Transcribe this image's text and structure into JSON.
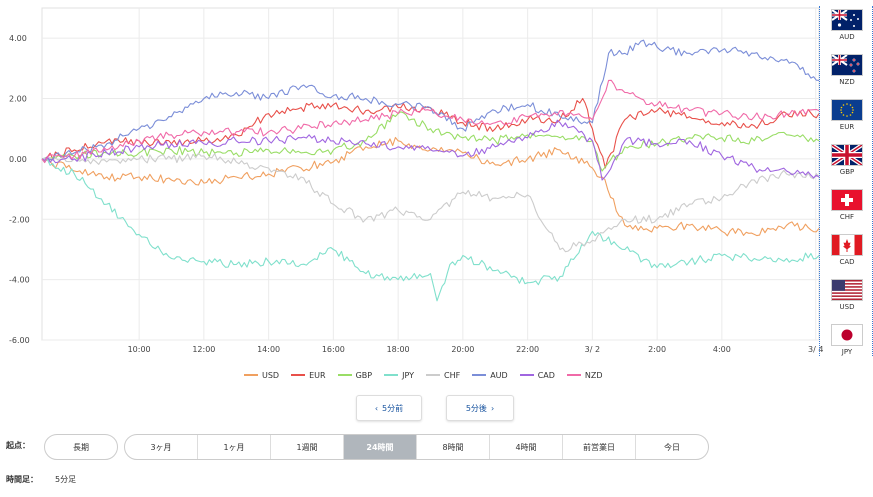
{
  "chart_data": {
    "type": "line",
    "ylim": [
      -6,
      5
    ],
    "yticks": [
      "4.00",
      "2.00",
      "0.00",
      "-2.00",
      "-4.00",
      "-6.00"
    ],
    "ytick_values": [
      4,
      2,
      0,
      -2,
      -4,
      -6
    ],
    "xlim": [
      0,
      24
    ],
    "xticks": [
      "10:00",
      "12:00",
      "14:00",
      "16:00",
      "18:00",
      "20:00",
      "22:00",
      "3/ 2",
      "2:00",
      "4:00",
      "3/ 4"
    ],
    "xtick_values": [
      3,
      5,
      7,
      9,
      11,
      13,
      15,
      17,
      19,
      21,
      23.9
    ],
    "grid": true,
    "series": [
      {
        "name": "USD",
        "color": "#f0a060",
        "x": [
          0,
          1,
          2,
          3,
          4,
          5,
          6,
          7,
          8,
          9,
          10,
          11,
          12,
          13,
          14,
          15,
          16,
          17,
          17.3,
          18,
          19,
          20,
          21,
          22,
          23,
          24
        ],
        "values": [
          0,
          -0.4,
          -0.6,
          -0.6,
          -0.7,
          -0.8,
          -0.6,
          -0.5,
          -0.3,
          -0.1,
          0.4,
          0.6,
          0.3,
          0.2,
          -0.2,
          0,
          0.3,
          -0.3,
          -0.6,
          -2.2,
          -2.3,
          -2.2,
          -2.4,
          -2.5,
          -2.2,
          -2.3
        ]
      },
      {
        "name": "EUR",
        "color": "#e8504a",
        "x": [
          0,
          1,
          2,
          3,
          4,
          5,
          6,
          7,
          8,
          9,
          10,
          11,
          12,
          13,
          14,
          15,
          16,
          16.7,
          17,
          17.4,
          18,
          19,
          20,
          21,
          22,
          23,
          24
        ],
        "values": [
          0,
          0.3,
          0.6,
          0.6,
          0.5,
          0.6,
          0.8,
          1.5,
          1.7,
          1.8,
          1.6,
          1.7,
          1.7,
          1.2,
          1.0,
          1.3,
          1.3,
          2.0,
          1.0,
          -0.3,
          1.3,
          1.6,
          1.4,
          1.2,
          1.1,
          1.5,
          1.5
        ]
      },
      {
        "name": "GBP",
        "color": "#99dd66",
        "x": [
          0,
          1,
          2,
          3,
          4,
          5,
          6,
          7,
          8,
          9,
          10,
          11,
          12,
          13,
          14,
          15,
          16,
          17,
          17.3,
          18,
          19,
          20,
          21,
          22,
          23,
          24
        ],
        "values": [
          0,
          0.1,
          0.2,
          0.2,
          0.3,
          0.2,
          0.2,
          0.3,
          0.2,
          0.3,
          0.6,
          1.5,
          1.0,
          0.7,
          0.6,
          0.8,
          0.7,
          0.6,
          -0.4,
          0.4,
          0.5,
          0.7,
          0.7,
          0.6,
          0.8,
          0.6
        ]
      },
      {
        "name": "JPY",
        "color": "#80e0cc",
        "x": [
          0,
          1,
          1.5,
          2,
          3,
          4,
          5,
          6,
          7,
          8,
          9,
          10,
          11,
          12,
          12.2,
          12.6,
          13,
          14,
          15,
          16,
          17,
          18,
          19,
          20,
          21,
          22,
          23,
          24
        ],
        "values": [
          0,
          -0.5,
          -1.0,
          -1.5,
          -2.5,
          -3.3,
          -3.4,
          -3.5,
          -3.4,
          -3.5,
          -3.0,
          -3.8,
          -4.0,
          -3.8,
          -4.7,
          -3.5,
          -3.2,
          -3.7,
          -4.1,
          -3.9,
          -2.4,
          -3.0,
          -3.6,
          -3.4,
          -3.2,
          -3.3,
          -3.3,
          -3.2
        ]
      },
      {
        "name": "CHF",
        "color": "#cccccc",
        "x": [
          0,
          1,
          2,
          3,
          4,
          5,
          6,
          7,
          8,
          9,
          10,
          11,
          12,
          13,
          14,
          15,
          16,
          17,
          18,
          19,
          20,
          21,
          22,
          23,
          24
        ],
        "values": [
          0,
          0,
          -0.1,
          0,
          0,
          0.1,
          -0.1,
          -0.3,
          -0.6,
          -1.5,
          -2.0,
          -1.7,
          -2.0,
          -1.1,
          -1.3,
          -1.2,
          -3.0,
          -2.7,
          -2.0,
          -2.0,
          -1.5,
          -1.3,
          -0.7,
          -0.5,
          -0.6
        ]
      },
      {
        "name": "AUD",
        "color": "#7b8ed8",
        "x": [
          0,
          1,
          2,
          3,
          4,
          5,
          6,
          7,
          8,
          9,
          10,
          11,
          12,
          13,
          14,
          15,
          16,
          17,
          17.5,
          18,
          18.5,
          19,
          20,
          21,
          22,
          23,
          24
        ],
        "values": [
          0,
          0.2,
          0.5,
          1.0,
          1.4,
          2.0,
          2.2,
          2.0,
          2.4,
          2.1,
          2.0,
          1.8,
          1.7,
          1.0,
          1.6,
          1.8,
          1.4,
          1.2,
          3.5,
          3.5,
          3.9,
          3.7,
          3.5,
          3.6,
          3.5,
          3.3,
          2.6
        ]
      },
      {
        "name": "CAD",
        "color": "#a066e0",
        "x": [
          0,
          1,
          2,
          3,
          4,
          5,
          6,
          7,
          8,
          9,
          10,
          11,
          12,
          13,
          14,
          15,
          16,
          17,
          17.3,
          18,
          19,
          20,
          21,
          22,
          23,
          24
        ],
        "values": [
          0,
          0,
          0.2,
          0.4,
          0.5,
          0.5,
          0.6,
          0.6,
          0.7,
          0.6,
          0.5,
          0.4,
          0.3,
          0.1,
          0.4,
          0.7,
          1.2,
          0.6,
          -0.7,
          0.6,
          0.5,
          0.6,
          0.1,
          -0.3,
          -0.4,
          -0.6
        ]
      },
      {
        "name": "NZD",
        "color": "#f06aa8",
        "x": [
          0,
          1,
          2,
          3,
          4,
          5,
          6,
          7,
          8,
          9,
          10,
          11,
          12,
          13,
          14,
          15,
          16,
          17,
          17.5,
          18,
          19,
          20,
          21,
          22,
          23,
          24
        ],
        "values": [
          0,
          0.1,
          0.3,
          0.6,
          0.8,
          0.9,
          0.9,
          0.9,
          1.0,
          1.2,
          1.3,
          1.5,
          1.6,
          1.3,
          1.2,
          1.4,
          1.6,
          1.3,
          2.6,
          2.2,
          1.8,
          1.6,
          1.5,
          1.4,
          1.5,
          1.6
        ]
      }
    ]
  },
  "flags": [
    {
      "code": "AUD",
      "icon": "australia-flag-icon"
    },
    {
      "code": "NZD",
      "icon": "new-zealand-flag-icon"
    },
    {
      "code": "EUR",
      "icon": "eu-flag-icon"
    },
    {
      "code": "GBP",
      "icon": "uk-flag-icon"
    },
    {
      "code": "CHF",
      "icon": "switzerland-flag-icon"
    },
    {
      "code": "CAD",
      "icon": "canada-flag-icon"
    },
    {
      "code": "USD",
      "icon": "usa-flag-icon"
    },
    {
      "code": "JPY",
      "icon": "japan-flag-icon"
    }
  ],
  "nav": {
    "prev_label": "5分前",
    "next_label": "5分後",
    "prev_icon": "chevron-left-icon",
    "next_icon": "chevron-right-icon"
  },
  "controls": {
    "origin_label": "起点：",
    "long_label": "長期",
    "ranges": [
      "3ヶ月",
      "1ヶ月",
      "1週間",
      "24時間",
      "8時間",
      "4時間",
      "前営業日",
      "今日"
    ],
    "active_range": "24時間",
    "timeframe_label": "時間足：",
    "timeframe_value": "5分足"
  }
}
